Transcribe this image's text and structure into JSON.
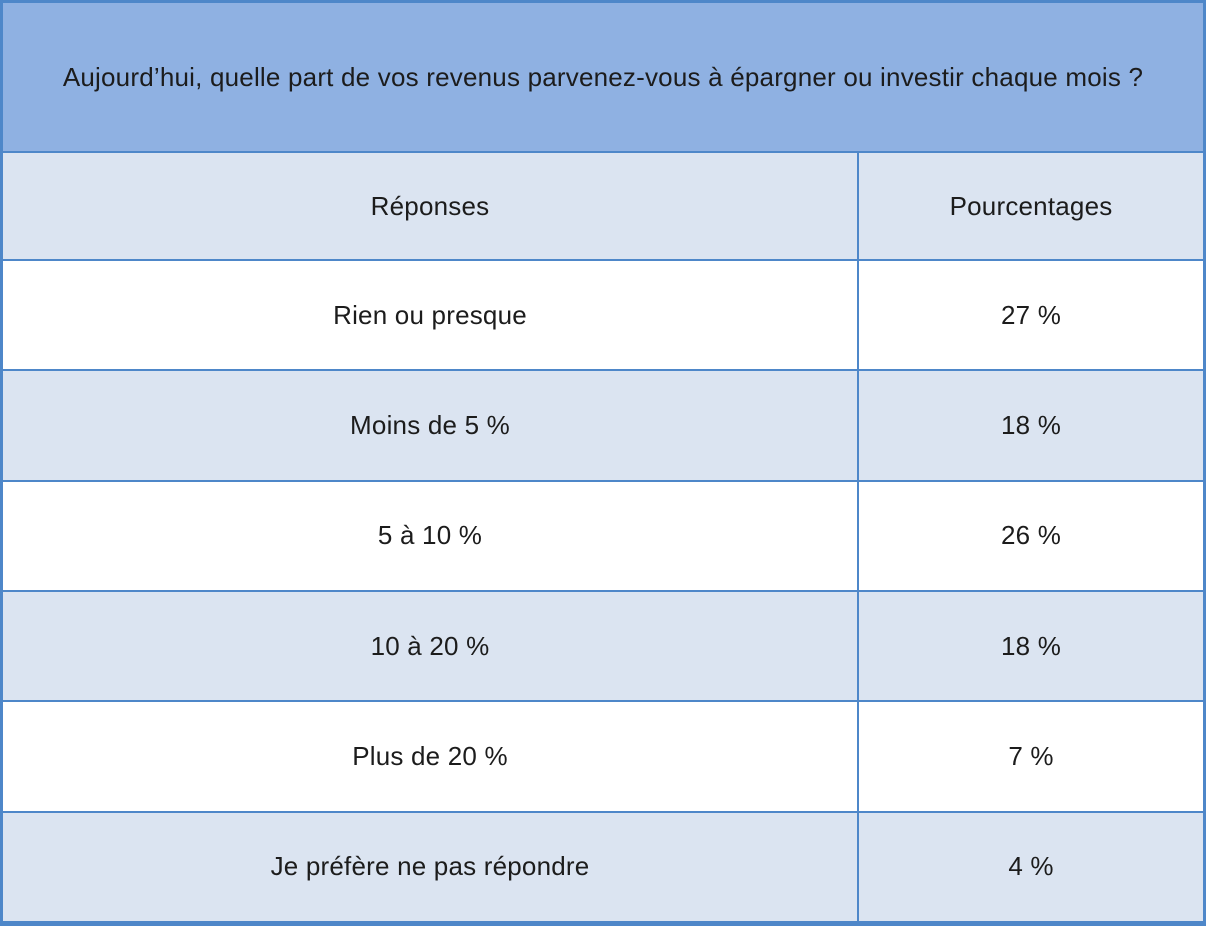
{
  "table": {
    "title": "Aujourd’hui, quelle part de vos revenus parvenez-vous à épargner ou investir chaque mois ?",
    "columns": {
      "answers": "Réponses",
      "percentages": "Pourcentages"
    },
    "rows": [
      {
        "label": "Rien ou presque",
        "value": "27 %"
      },
      {
        "label": "Moins de 5 %",
        "value": "18 %"
      },
      {
        "label": "5 à 10 %",
        "value": "26 %"
      },
      {
        "label": "10 à 20 %",
        "value": "18 %"
      },
      {
        "label": "Plus de 20 %",
        "value": "7 %"
      },
      {
        "label": "Je préfère ne pas répondre",
        "value": "4 %"
      }
    ],
    "colors": {
      "title_bg": "#8fb1e2",
      "subheader_bg": "#dbe4f1",
      "row_bg": "#ffffff",
      "row_alt_bg": "#dbe4f1",
      "border": "#4e87c9",
      "text": "#1c1c1c"
    }
  },
  "chart_data": {
    "type": "table",
    "title": "Aujourd’hui, quelle part de vos revenus parvenez-vous à épargner ou investir chaque mois ?",
    "columns": [
      "Réponses",
      "Pourcentages"
    ],
    "categories": [
      "Rien ou presque",
      "Moins de 5 %",
      "5 à 10 %",
      "10 à 20 %",
      "Plus de 20 %",
      "Je préfère ne pas répondre"
    ],
    "values": [
      27,
      18,
      26,
      18,
      7,
      4
    ],
    "value_unit": "%"
  }
}
